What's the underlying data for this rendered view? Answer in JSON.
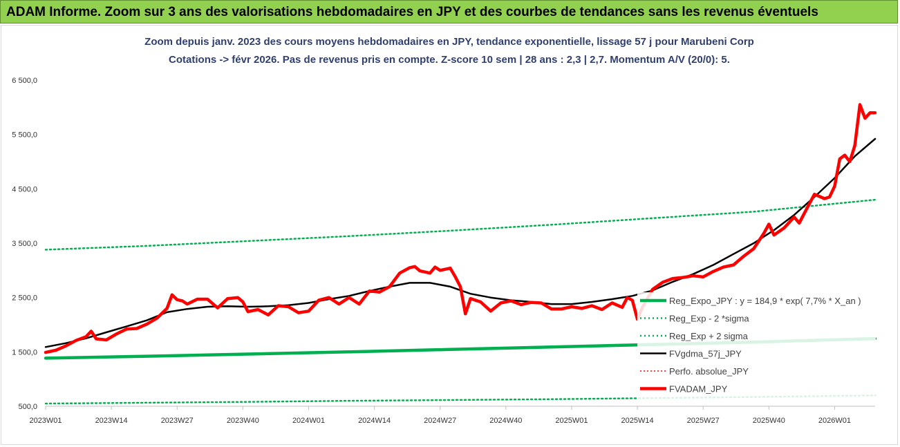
{
  "banner": {
    "title": "ADAM Informe. Zoom sur 3 ans des valorisations hebdomadaires en JPY et des courbes de tendances sans les revenus éventuels"
  },
  "chart_data": {
    "type": "line",
    "title": "Zoom depuis janv. 2023 des cours moyens hebdomadaires en JPY, tendance exponentielle, lissage 57 j pour Marubeni Corp",
    "subtitle": "Cotations -> févr 2026.  Pas de revenus pris en compte. Z-score 10 sem | 28 ans : 2,3 | 2,7. Momentum A/V (20/0): 5.",
    "ylim": [
      500,
      6500
    ],
    "y_ticks": [
      "500,0",
      "1 500,0",
      "2 500,0",
      "3 500,0",
      "4 500,0",
      "5 500,0",
      "6 500,0"
    ],
    "y_tick_values": [
      500,
      1500,
      2500,
      3500,
      4500,
      5500,
      6500
    ],
    "x_tick_labels": [
      "2023W01",
      "2023W14",
      "2023W27",
      "2023W40",
      "2024W01",
      "2024W14",
      "2024W27",
      "2024W40",
      "2025W01",
      "2025W14",
      "2025W27",
      "2025W40",
      "2026W01"
    ],
    "x_tick_weeks": [
      0,
      13,
      26,
      39,
      52,
      65,
      78,
      91,
      104,
      117,
      130,
      143,
      156
    ],
    "x_max_week": 164,
    "grid": false,
    "legend_position": "right",
    "legend": [
      {
        "label": "Reg_Expo_JPY : y = 184,9 * exp( 7,7% *  X_an )",
        "color": "#00b050",
        "style": "solid-thick"
      },
      {
        "label": "Reg_Exp - 2 *sigma",
        "color": "#00b050",
        "style": "dotted"
      },
      {
        "label": "Reg_Exp + 2 sigma",
        "color": "#00b050",
        "style": "dotted"
      },
      {
        "label": "FVgdma_57j_JPY",
        "color": "#000000",
        "style": "solid"
      },
      {
        "label": "Perfo. absolue_JPY",
        "color": "#ff0000",
        "style": "dotted-thin"
      },
      {
        "label": "FVADAM_JPY",
        "color": "#ff0000",
        "style": "solid-thick"
      }
    ],
    "series": [
      {
        "name": "Reg_Expo_JPY : y = 184,9 * exp( 7,7% *  X_an )",
        "color": "#00b050",
        "x": [
          0,
          20,
          40,
          60,
          80,
          100,
          120,
          140,
          164
        ],
        "values": [
          1385,
          1420,
          1460,
          1500,
          1545,
          1590,
          1635,
          1680,
          1745
        ]
      },
      {
        "name": "Reg_Exp - 2 *sigma",
        "color": "#00b050",
        "x": [
          0,
          20,
          40,
          60,
          80,
          100,
          120,
          140,
          164
        ],
        "values": [
          550,
          565,
          580,
          600,
          615,
          630,
          650,
          670,
          700
        ]
      },
      {
        "name": "Reg_Exp + 2 sigma",
        "color": "#00b050",
        "x": [
          0,
          20,
          40,
          60,
          80,
          100,
          120,
          140,
          164
        ],
        "values": [
          3380,
          3450,
          3540,
          3630,
          3730,
          3840,
          3960,
          4080,
          4300
        ]
      },
      {
        "name": "FVgdma_57j_JPY",
        "color": "#000000",
        "x": [
          0,
          4,
          8,
          12,
          16,
          20,
          24,
          28,
          32,
          36,
          40,
          44,
          48,
          52,
          56,
          60,
          64,
          68,
          72,
          76,
          80,
          84,
          88,
          92,
          96,
          100,
          104,
          108,
          112,
          116,
          120,
          124,
          128,
          132,
          136,
          140,
          144,
          148,
          152,
          156,
          160,
          164
        ],
        "values": [
          1590,
          1660,
          1750,
          1860,
          1970,
          2080,
          2230,
          2290,
          2330,
          2340,
          2330,
          2340,
          2360,
          2400,
          2470,
          2530,
          2620,
          2700,
          2770,
          2770,
          2700,
          2570,
          2500,
          2450,
          2420,
          2380,
          2380,
          2420,
          2470,
          2530,
          2630,
          2790,
          2930,
          3100,
          3300,
          3500,
          3740,
          4020,
          4350,
          4700,
          5100,
          5420
        ]
      },
      {
        "name": "FVADAM_JPY",
        "color": "#ff0000",
        "x": [
          0,
          2,
          4,
          6,
          8,
          9,
          10,
          12,
          14,
          16,
          18,
          20,
          22,
          24,
          25,
          26,
          27,
          28,
          30,
          32,
          34,
          36,
          38,
          39,
          40,
          42,
          44,
          46,
          48,
          50,
          52,
          54,
          56,
          58,
          60,
          62,
          64,
          66,
          68,
          70,
          72,
          73,
          74,
          76,
          77,
          78,
          80,
          81,
          82,
          83,
          84,
          86,
          88,
          90,
          92,
          94,
          96,
          98,
          100,
          102,
          104,
          106,
          108,
          110,
          112,
          114,
          115,
          116,
          117,
          118,
          120,
          122,
          124,
          126,
          128,
          130,
          132,
          134,
          136,
          138,
          140,
          142,
          143,
          144,
          146,
          148,
          149,
          150,
          152,
          154,
          155,
          156,
          157,
          158,
          159,
          160,
          161,
          162,
          163,
          164
        ],
        "values": [
          1490,
          1530,
          1610,
          1710,
          1780,
          1880,
          1740,
          1720,
          1830,
          1920,
          1930,
          2010,
          2120,
          2300,
          2550,
          2460,
          2440,
          2380,
          2470,
          2470,
          2310,
          2480,
          2500,
          2420,
          2240,
          2280,
          2180,
          2350,
          2330,
          2220,
          2250,
          2450,
          2500,
          2380,
          2500,
          2380,
          2620,
          2600,
          2700,
          2950,
          3050,
          3070,
          2990,
          2950,
          3060,
          3000,
          3040,
          2880,
          2700,
          2200,
          2480,
          2420,
          2250,
          2400,
          2440,
          2370,
          2410,
          2400,
          2290,
          2290,
          2330,
          2300,
          2350,
          2280,
          2400,
          2320,
          2500,
          2450,
          2100,
          2320,
          2650,
          2780,
          2850,
          2870,
          2900,
          2880,
          2980,
          3060,
          3100,
          3260,
          3400,
          3680,
          3850,
          3650,
          3780,
          3980,
          3870,
          4050,
          4400,
          4320,
          4350,
          4550,
          5050,
          5120,
          5000,
          5300,
          6050,
          5800,
          5900,
          5900
        ]
      }
    ]
  }
}
